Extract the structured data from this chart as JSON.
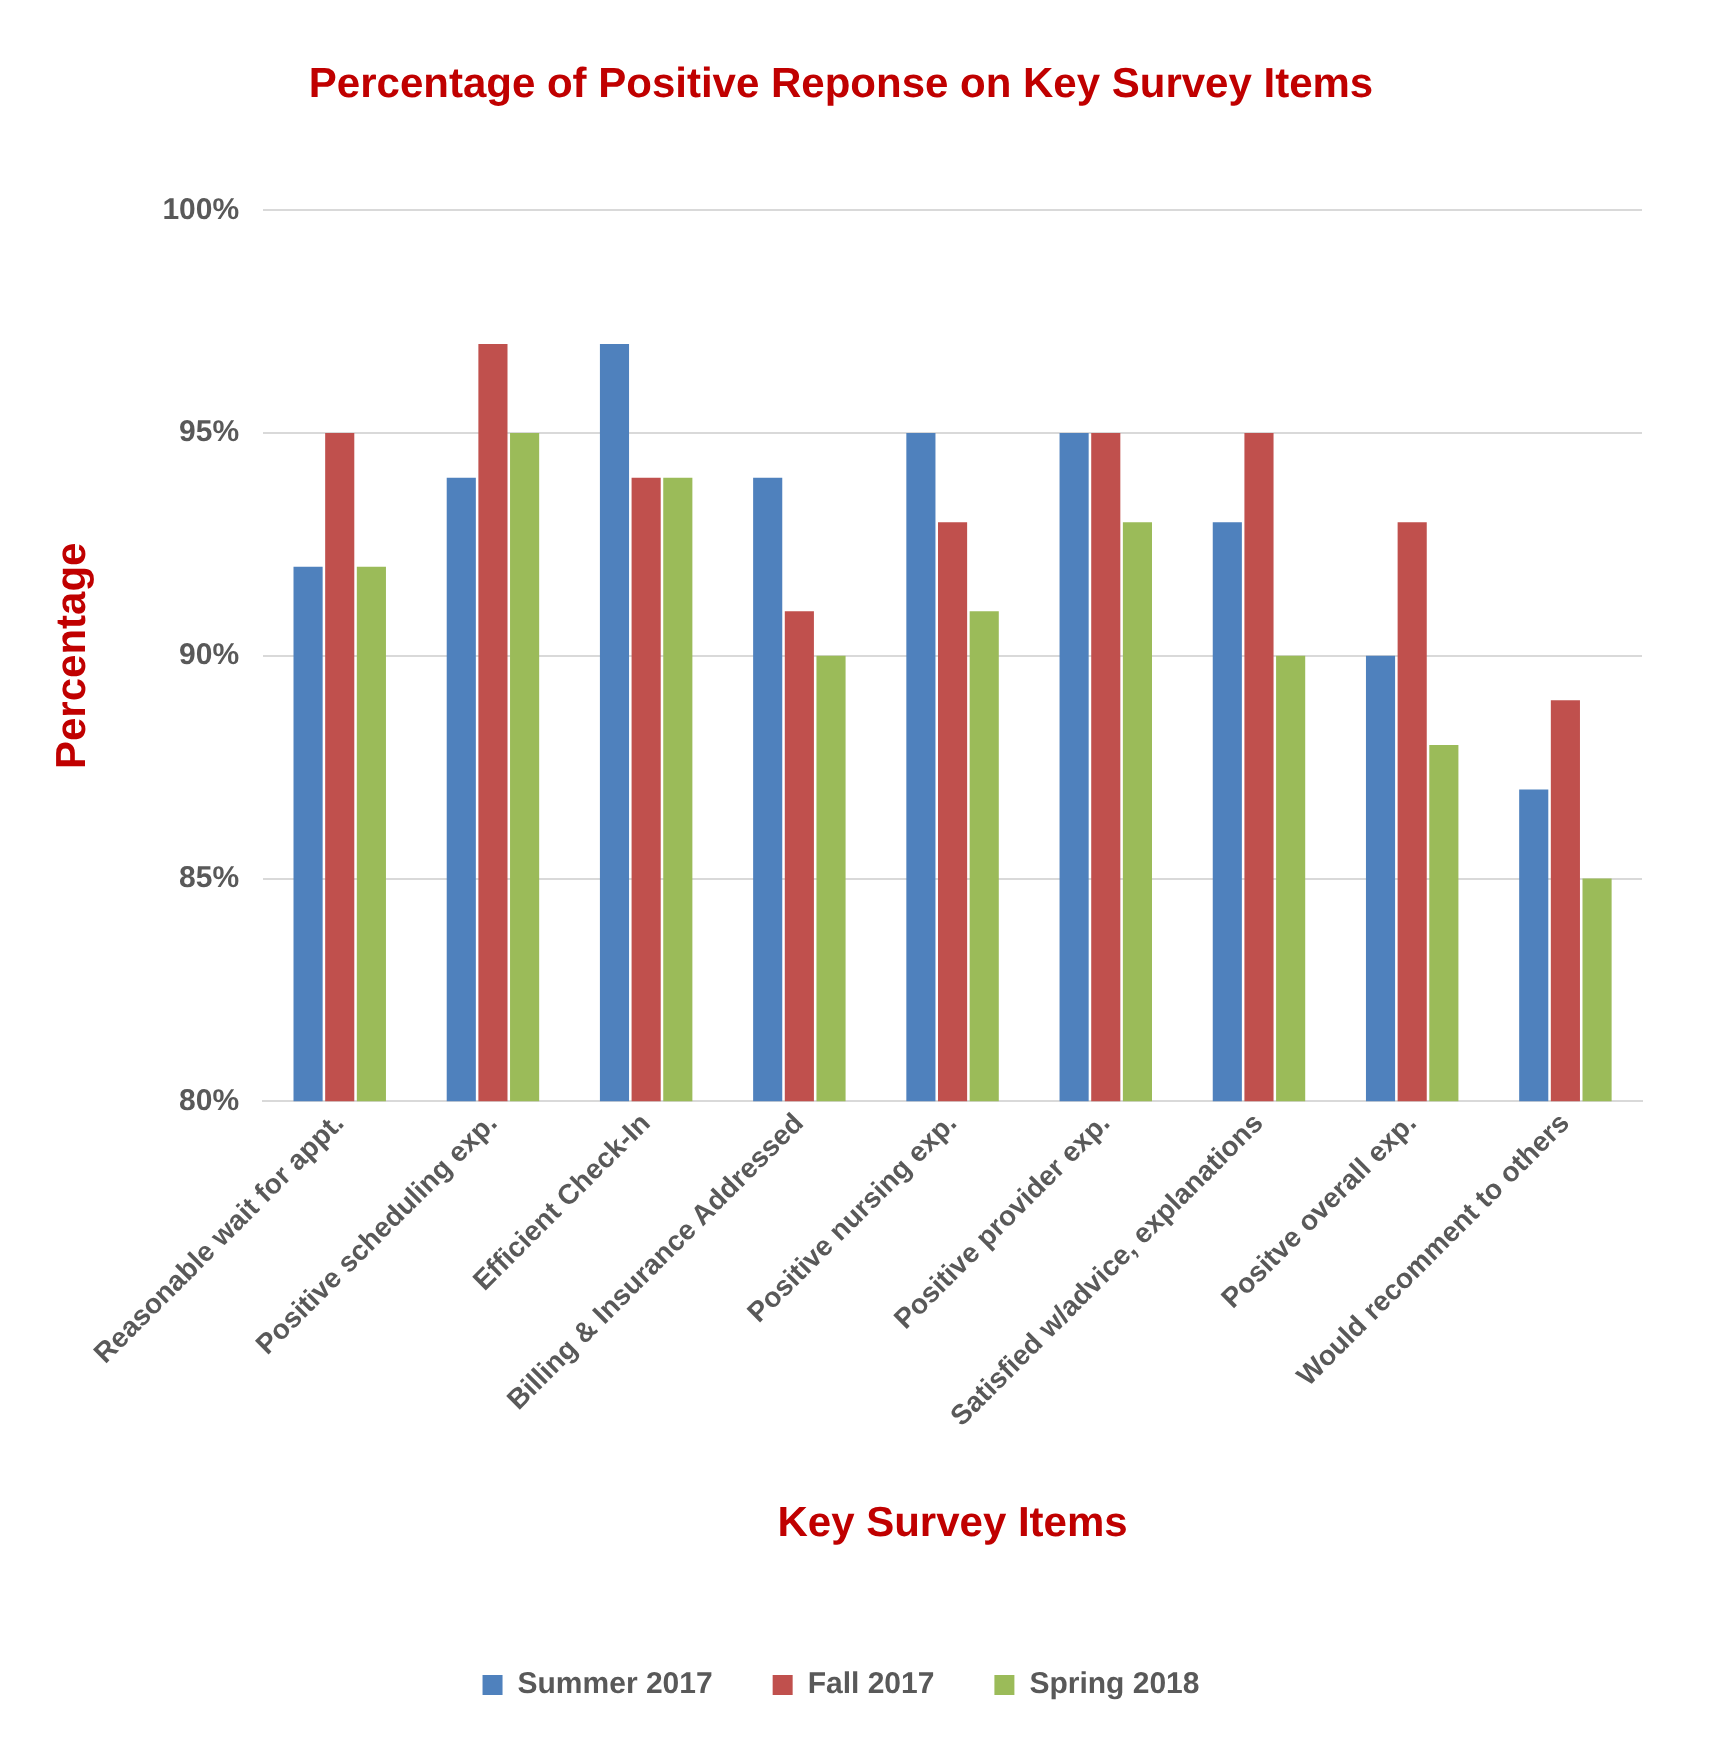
{
  "chart_data": {
    "type": "bar",
    "title": "Percentage of Positive Reponse on Key Survey Items",
    "xlabel": "Key Survey Items",
    "ylabel": "Percentage",
    "categories": [
      "Reasonable wait for appt.",
      "Positive scheduling exp.",
      "Efficient Check-In",
      "Billing & Insurance Addressed",
      "Positive nursing exp.",
      "Positive provider exp.",
      "Satisfied w/advice, explanations",
      "Positve overall exp.",
      "Would recomment to others"
    ],
    "series": [
      {
        "name": "Summer 2017",
        "color": "#4f81bd",
        "values": [
          92,
          94,
          97,
          94,
          95,
          95,
          93,
          90,
          87
        ]
      },
      {
        "name": "Fall 2017",
        "color": "#c0504d",
        "values": [
          95,
          97,
          94,
          91,
          93,
          95,
          95,
          93,
          89
        ]
      },
      {
        "name": "Spring 2018",
        "color": "#9bbb59",
        "values": [
          92,
          95,
          94,
          90,
          91,
          93,
          90,
          88,
          85
        ]
      }
    ],
    "ylim": [
      80,
      100
    ],
    "yticks": [
      {
        "value": 80,
        "label": "80%"
      },
      {
        "value": 85,
        "label": "85%"
      },
      {
        "value": 90,
        "label": "90%"
      },
      {
        "value": 95,
        "label": "95%"
      },
      {
        "value": 100,
        "label": "100%"
      }
    ],
    "grid": "y",
    "legend": "bottom"
  }
}
